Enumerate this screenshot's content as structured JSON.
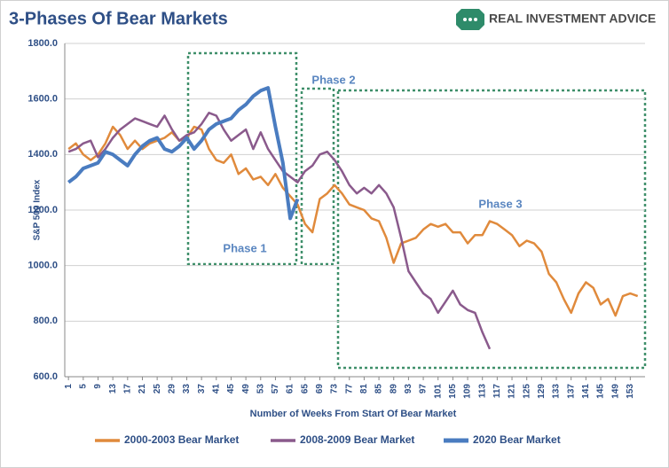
{
  "chart_data": {
    "type": "line",
    "title": "3-Phases Of Bear Markets",
    "brand": "REAL INVESTMENT ADVICE",
    "y_label": "S&P 500 Index",
    "x_label": "Number of Weeks From Start Of Bear Market",
    "annotations": [
      "Phase 1",
      "Phase 2",
      "Phase 3"
    ],
    "x": [
      1,
      3,
      5,
      7,
      9,
      11,
      13,
      15,
      17,
      19,
      21,
      23,
      25,
      27,
      29,
      31,
      33,
      35,
      37,
      39,
      41,
      43,
      45,
      47,
      49,
      51,
      53,
      55,
      57,
      59,
      61,
      63,
      65,
      67,
      69,
      71,
      73,
      75,
      77,
      79,
      81,
      83,
      85,
      87,
      89,
      91,
      93,
      95,
      97,
      99,
      101,
      103,
      105,
      107,
      109,
      111,
      113,
      115,
      117,
      119,
      121,
      123,
      125,
      127,
      129,
      131,
      133,
      135,
      137,
      139,
      141,
      143,
      145,
      147,
      149,
      151,
      153,
      155
    ],
    "xlim": [
      0,
      157
    ],
    "xticks": [
      1,
      5,
      9,
      13,
      17,
      21,
      25,
      29,
      33,
      37,
      41,
      45,
      49,
      53,
      57,
      61,
      65,
      69,
      73,
      77,
      81,
      85,
      89,
      93,
      97,
      101,
      105,
      109,
      113,
      117,
      121,
      125,
      129,
      133,
      137,
      141,
      145,
      149,
      153
    ],
    "ylim": [
      600,
      1800
    ],
    "yticks": [
      {
        "value": 600,
        "label": "600.0"
      },
      {
        "value": 800,
        "label": "800.0"
      },
      {
        "value": 1000,
        "label": "1000.0"
      },
      {
        "value": 1200,
        "label": "1200.0"
      },
      {
        "value": 1400,
        "label": "1400.0"
      },
      {
        "value": 1600,
        "label": "1600.0"
      },
      {
        "value": 1800,
        "label": "1800.0"
      }
    ],
    "grid": true,
    "legend": "bottom",
    "series": [
      {
        "name": "2000-2003 Bear Market",
        "color": "#e08a3c",
        "width": 2.5,
        "values": [
          1420,
          1440,
          1400,
          1380,
          1400,
          1440,
          1500,
          1470,
          1420,
          1450,
          1420,
          1440,
          1450,
          1460,
          1480,
          1450,
          1460,
          1500,
          1490,
          1420,
          1380,
          1370,
          1400,
          1330,
          1350,
          1310,
          1320,
          1290,
          1330,
          1280,
          1250,
          1220,
          1150,
          1120,
          1240,
          1260,
          1290,
          1260,
          1220,
          1210,
          1200,
          1170,
          1160,
          1100,
          1010,
          1080,
          1090,
          1100,
          1130,
          1150,
          1140,
          1150,
          1120,
          1120,
          1080,
          1110,
          1110,
          1160,
          1150,
          1130,
          1110,
          1070,
          1090,
          1080,
          1050,
          970,
          940,
          880,
          830,
          900,
          940,
          920,
          860,
          880,
          820,
          890,
          900,
          890
        ]
      },
      {
        "name": "2008-2009 Bear Market",
        "color": "#8a5a8c",
        "width": 2.5,
        "values": [
          1410,
          1420,
          1440,
          1450,
          1390,
          1420,
          1460,
          1490,
          1510,
          1530,
          1520,
          1510,
          1500,
          1540,
          1490,
          1450,
          1470,
          1480,
          1510,
          1550,
          1540,
          1490,
          1450,
          1470,
          1490,
          1420,
          1480,
          1420,
          1380,
          1340,
          1320,
          1300,
          1340,
          1360,
          1400,
          1410,
          1380,
          1340,
          1290,
          1260,
          1280,
          1260,
          1290,
          1260,
          1210,
          1100,
          980,
          940,
          900,
          880,
          830,
          870,
          910,
          860,
          840,
          830,
          760,
          700,
          null,
          null,
          null,
          null,
          null,
          null,
          null,
          null,
          null,
          null,
          null,
          null,
          null,
          null,
          null,
          null,
          null,
          null,
          null,
          null
        ]
      },
      {
        "name": "2020 Bear Market",
        "color": "#4a7cc0",
        "width": 4,
        "values": [
          1300,
          1320,
          1350,
          1360,
          1370,
          1410,
          1400,
          1380,
          1360,
          1400,
          1430,
          1450,
          1460,
          1420,
          1410,
          1430,
          1460,
          1420,
          1450,
          1490,
          1510,
          1520,
          1530,
          1560,
          1580,
          1610,
          1630,
          1640,
          1500,
          1370,
          1170,
          1240,
          null,
          null,
          null,
          null,
          null,
          null,
          null,
          null,
          null,
          null,
          null,
          null,
          null,
          null,
          null,
          null,
          null,
          null,
          null,
          null,
          null,
          null,
          null,
          null,
          null,
          null,
          null,
          null,
          null,
          null,
          null,
          null,
          null,
          null,
          null,
          null,
          null,
          null,
          null,
          null,
          null,
          null,
          null,
          null,
          null,
          null
        ]
      }
    ]
  }
}
